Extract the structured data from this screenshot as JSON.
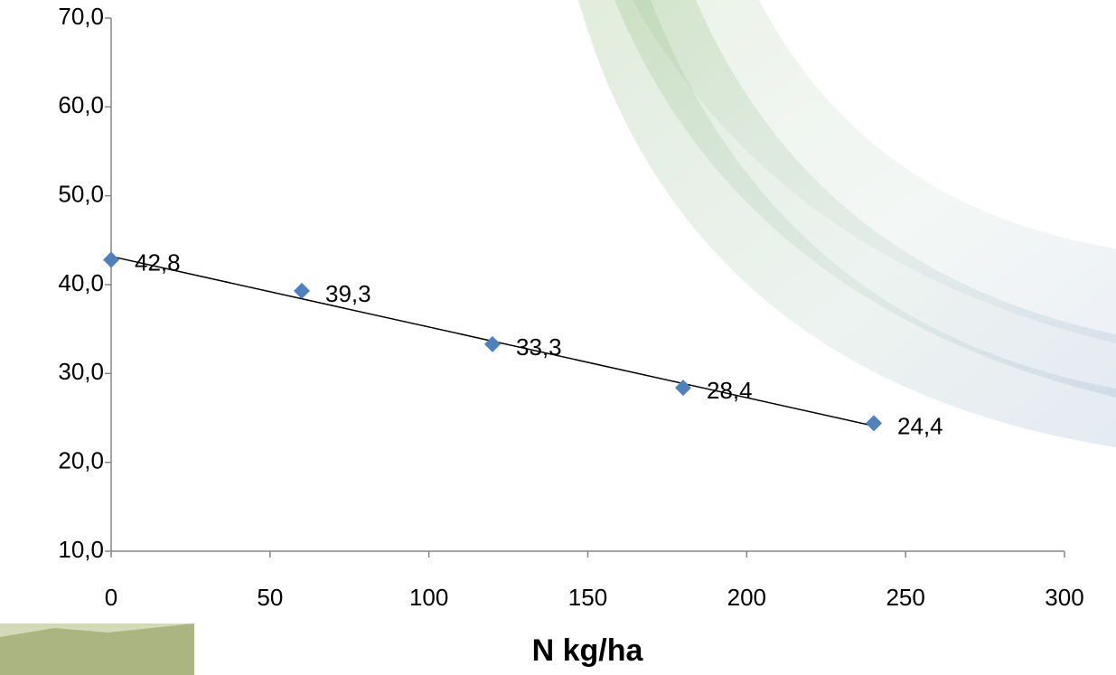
{
  "chart_data": {
    "type": "scatter",
    "x_label": "N kg/ha",
    "x": [
      0,
      60,
      120,
      180,
      240
    ],
    "values": [
      42.8,
      39.3,
      33.3,
      28.4,
      24.4
    ],
    "value_labels": [
      "42,8",
      "39,3",
      "33,3",
      "28,4",
      "24,4"
    ],
    "color": "#4f81bd",
    "marker": "diamond",
    "trendline": "linear",
    "trendline_color": "#000000",
    "xlim": [
      0,
      300
    ],
    "xticks": [
      0,
      50,
      100,
      150,
      200,
      250,
      300
    ],
    "ylim": [
      10,
      70
    ],
    "yticks": [
      {
        "value": 10,
        "label": "10,0"
      },
      {
        "value": 20,
        "label": "20,0"
      },
      {
        "value": 30,
        "label": "30,0"
      },
      {
        "value": 40,
        "label": "40,0"
      },
      {
        "value": 50,
        "label": "50,0"
      },
      {
        "value": 60,
        "label": "60,0"
      },
      {
        "value": 70,
        "label": "70,0"
      }
    ],
    "grid": false
  }
}
